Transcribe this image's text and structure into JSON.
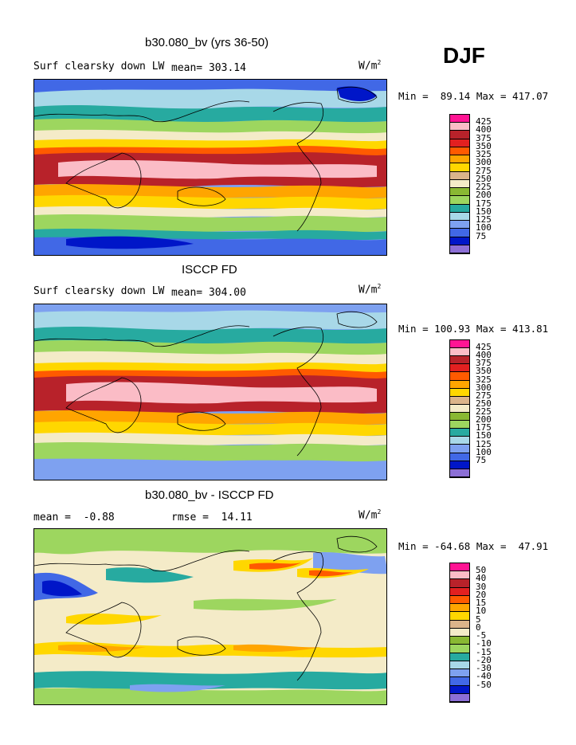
{
  "season": "DJF",
  "palettes": {
    "abs": [
      "#8c6fd6",
      "#0016c8",
      "#4168e6",
      "#7ea1f0",
      "#a8d8e8",
      "#27aaa0",
      "#9dd65f",
      "#89b833",
      "#f4ebc8",
      "#dbb48a",
      "#ffd700",
      "#ffa500",
      "#ff5a00",
      "#e22020",
      "#b8222a",
      "#fbbcc6",
      "#ff1493"
    ],
    "diff": [
      "#8c6fd6",
      "#0016c8",
      "#4168e6",
      "#7ea1f0",
      "#a8d8e8",
      "#27aaa0",
      "#9dd65f",
      "#89b833",
      "#f4ebc8",
      "#dbb48a",
      "#ffd700",
      "#ffa500",
      "#ff5a00",
      "#e22020",
      "#b8222a",
      "#fbbcc6",
      "#ff1493"
    ]
  },
  "panels": [
    {
      "title": "b30.080_bv (yrs 36-50)",
      "left_label": "Surf clearsky down LW",
      "stat_label": "mean=",
      "stat_value": "303.14",
      "stat2_label": "",
      "stat2_value": "",
      "units": "W/m",
      "units_sup": "2",
      "min_label": "Min =",
      "min_value": "89.14",
      "max_label": "Max =",
      "max_value": "417.07",
      "legend": [
        "425",
        "400",
        "375",
        "350",
        "325",
        "300",
        "275",
        "250",
        "225",
        "200",
        "175",
        "150",
        "125",
        "100",
        "75"
      ]
    },
    {
      "title": "ISCCP FD",
      "left_label": "Surf clearsky down LW",
      "stat_label": "mean=",
      "stat_value": "304.00",
      "stat2_label": "",
      "stat2_value": "",
      "units": "W/m",
      "units_sup": "2",
      "min_label": "Min =",
      "min_value": "100.93",
      "max_label": "Max =",
      "max_value": "413.81",
      "legend": [
        "425",
        "400",
        "375",
        "350",
        "325",
        "300",
        "275",
        "250",
        "225",
        "200",
        "175",
        "150",
        "125",
        "100",
        "75"
      ]
    },
    {
      "title": "b30.080_bv - ISCCP FD",
      "left_label": "",
      "stat_label": "mean =",
      "stat_value": "-0.88",
      "stat2_label": "rmse =",
      "stat2_value": "14.11",
      "units": "W/m",
      "units_sup": "2",
      "min_label": "Min =",
      "min_value": "-64.68",
      "max_label": "Max =",
      "max_value": "47.91",
      "legend": [
        "50",
        "40",
        "30",
        "20",
        "15",
        "10",
        "5",
        "0",
        "-5",
        "-10",
        "-15",
        "-20",
        "-30",
        "-40",
        "-50"
      ]
    }
  ]
}
